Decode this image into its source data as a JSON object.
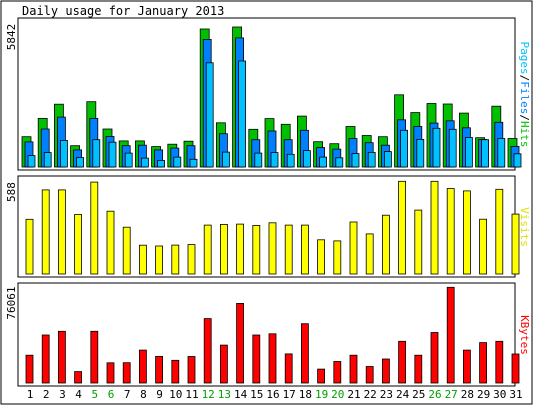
{
  "chart_data": {
    "type": "bar",
    "title": "Daily usage for January 2013",
    "days": [
      "1",
      "2",
      "3",
      "4",
      "5",
      "6",
      "7",
      "8",
      "9",
      "10",
      "11",
      "12",
      "13",
      "14",
      "15",
      "16",
      "17",
      "18",
      "19",
      "20",
      "21",
      "22",
      "23",
      "24",
      "25",
      "26",
      "27",
      "28",
      "29",
      "30",
      "31"
    ],
    "weekend_days": [
      "5",
      "6",
      "12",
      "13",
      "19",
      "20",
      "26",
      "27"
    ],
    "panels": [
      {
        "id": "requests",
        "ymax_label": "5842",
        "ymax": 5842,
        "axis_label_parts": [
          {
            "text": "Pages",
            "color": "#00c0ff"
          },
          {
            "text": "/",
            "color": "#000000"
          },
          {
            "text": "Files",
            "color": "#0080ff"
          },
          {
            "text": "/",
            "color": "#000000"
          },
          {
            "text": "Hits",
            "color": "#00c000"
          }
        ],
        "series": [
          {
            "name": "Hits",
            "color": "#00c000",
            "values": [
              1220,
              1960,
              2530,
              860,
              2630,
              1530,
              1050,
              1050,
              820,
              920,
              1040,
              5560,
              1780,
              5640,
              1520,
              1950,
              1720,
              2050,
              1020,
              940,
              1630,
              1270,
              1220,
              2910,
              2190,
              2560,
              2540,
              2170,
              1180,
              2450,
              1150
            ]
          },
          {
            "name": "Files",
            "color": "#0080ff",
            "values": [
              1010,
              1530,
              2010,
              690,
              1960,
              1230,
              860,
              880,
              690,
              760,
              860,
              5140,
              1340,
              5200,
              1100,
              1450,
              1100,
              1480,
              780,
              720,
              1150,
              980,
              880,
              1900,
              1630,
              1770,
              1860,
              1580,
              1110,
              1800,
              830
            ]
          },
          {
            "name": "Pages",
            "color": "#00c0ff",
            "values": [
              460,
              580,
              1070,
              380,
              1100,
              1000,
              560,
              360,
              260,
              400,
              310,
              4200,
              600,
              4270,
              560,
              580,
              510,
              660,
              400,
              370,
              540,
              590,
              620,
              1480,
              1110,
              1560,
              1520,
              1190,
              1100,
              1150,
              530
            ]
          }
        ]
      },
      {
        "id": "visits",
        "ymax_label": "588",
        "ymax": 588,
        "axis_label_parts": [
          {
            "text": "Visits",
            "color": "#e0e000"
          }
        ],
        "series": [
          {
            "name": "Visits",
            "color": "#ffff00",
            "values": [
              342,
              526,
              526,
              372,
              575,
              393,
              293,
              180,
              175,
              181,
              184,
              306,
              310,
              312,
              304,
              320,
              306,
              306,
              214,
              207,
              325,
              251,
              368,
              580,
              400,
              580,
              535,
              520,
              343,
              530,
              375
            ]
          }
        ]
      },
      {
        "id": "kbytes",
        "ymax_label": "76061",
        "ymax": 76061,
        "axis_label_parts": [
          {
            "text": "KBytes",
            "color": "#ff0000"
          }
        ],
        "series": [
          {
            "name": "KBytes",
            "color": "#ff0000",
            "values": [
              22030,
              38050,
              41000,
              9030,
              41000,
              16030,
              16050,
              26050,
              21050,
              18010,
              21000,
              51050,
              30040,
              63050,
              38060,
              39000,
              23030,
              47000,
              11050,
              17040,
              22000,
              13070,
              19020,
              33050,
              22000,
              40000,
              75800,
              26050,
              32010,
              33000,
              23010
            ]
          }
        ]
      }
    ]
  }
}
